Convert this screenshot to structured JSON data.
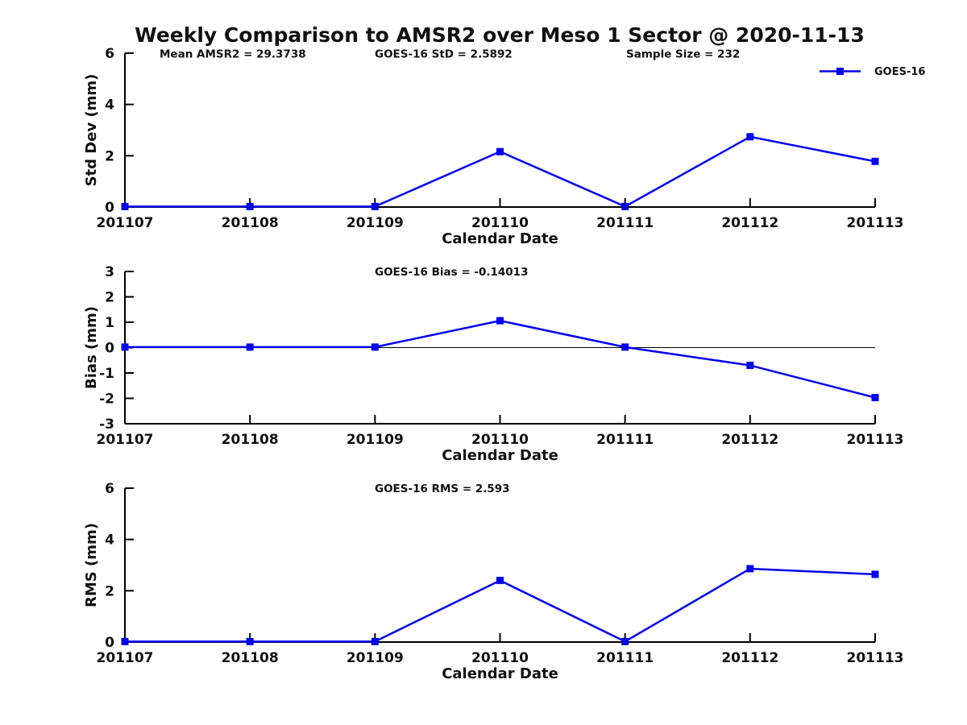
{
  "title": "Weekly Comparison to AMSR2 over Meso 1 Sector @ 2020-11-13",
  "colors": {
    "series": "#0000EE",
    "axis": "#000000",
    "text": "#111111"
  },
  "legend": {
    "label": "GOES-16",
    "position": "top-right"
  },
  "chart_data": [
    {
      "id": "std-dev",
      "type": "line",
      "categories": [
        "201107",
        "201108",
        "201109",
        "201110",
        "201111",
        "201112",
        "201113"
      ],
      "series": [
        {
          "name": "GOES-16",
          "values": [
            0.02,
            0.02,
            0.02,
            2.16,
            0.02,
            2.74,
            1.78
          ]
        }
      ],
      "xlabel": "Calendar Date",
      "ylabel": "Std Dev (mm)",
      "ylim": [
        0,
        6
      ],
      "yticks": [
        0,
        2,
        4,
        6
      ],
      "grid": false,
      "legend": true,
      "zero_line": false,
      "annotations": [
        "Mean AMSR2 = 29.3738",
        "GOES-16 StD = 2.5892",
        "Sample Size = 232"
      ]
    },
    {
      "id": "bias",
      "type": "line",
      "categories": [
        "201107",
        "201108",
        "201109",
        "201110",
        "201111",
        "201112",
        "201113"
      ],
      "series": [
        {
          "name": "GOES-16",
          "values": [
            0.02,
            0.02,
            0.02,
            1.06,
            0.02,
            -0.7,
            -1.97
          ]
        }
      ],
      "xlabel": "Calendar Date",
      "ylabel": "Bias (mm)",
      "ylim": [
        -3,
        3
      ],
      "yticks": [
        -3,
        -2,
        -1,
        0,
        1,
        2,
        3
      ],
      "grid": false,
      "legend": false,
      "zero_line": true,
      "annotations": [
        "GOES-16 Bias  = -0.14013"
      ]
    },
    {
      "id": "rms",
      "type": "line",
      "categories": [
        "201107",
        "201108",
        "201109",
        "201110",
        "201111",
        "201112",
        "201113"
      ],
      "series": [
        {
          "name": "GOES-16",
          "values": [
            0.02,
            0.02,
            0.02,
            2.4,
            0.02,
            2.86,
            2.64
          ]
        }
      ],
      "xlabel": "Calendar Date",
      "ylabel": "RMS (mm)",
      "ylim": [
        0,
        6
      ],
      "yticks": [
        0,
        2,
        4,
        6
      ],
      "grid": false,
      "legend": false,
      "zero_line": false,
      "annotations": [
        "GOES-16 RMS = 2.593"
      ]
    }
  ]
}
